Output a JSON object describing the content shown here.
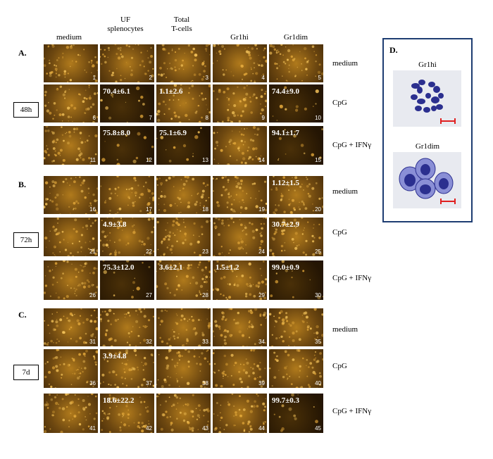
{
  "columns": [
    "medium",
    "UF splenocytes",
    "Total T-cells",
    "Gr1hi",
    "Gr1dim"
  ],
  "row_conditions": [
    "medium",
    "CpG",
    "CpG + IFNγ"
  ],
  "sections": [
    {
      "label": "A.",
      "time": "48h",
      "rows": [
        {
          "cells": [
            {
              "num": "1",
              "val": ""
            },
            {
              "num": "2",
              "val": ""
            },
            {
              "num": "3",
              "val": ""
            },
            {
              "num": "4",
              "val": ""
            },
            {
              "num": "5",
              "val": ""
            }
          ]
        },
        {
          "cells": [
            {
              "num": "6",
              "val": ""
            },
            {
              "num": "7",
              "val": "70.4±6.1"
            },
            {
              "num": "8",
              "val": "1.1±2.6"
            },
            {
              "num": "9",
              "val": ""
            },
            {
              "num": "10",
              "val": "74.4±9.0"
            }
          ]
        },
        {
          "cells": [
            {
              "num": "11",
              "val": ""
            },
            {
              "num": "12",
              "val": "75.8±8.0"
            },
            {
              "num": "13",
              "val": "75.1±6.9"
            },
            {
              "num": "14",
              "val": ""
            },
            {
              "num": "15",
              "val": "94.1±1.7"
            }
          ]
        }
      ]
    },
    {
      "label": "B.",
      "time": "72h",
      "rows": [
        {
          "cells": [
            {
              "num": "16",
              "val": ""
            },
            {
              "num": "17",
              "val": ""
            },
            {
              "num": "18",
              "val": ""
            },
            {
              "num": "19",
              "val": ""
            },
            {
              "num": "20",
              "val": "1.12±1.5"
            }
          ]
        },
        {
          "cells": [
            {
              "num": "21",
              "val": ""
            },
            {
              "num": "22",
              "val": "4.9±3.8"
            },
            {
              "num": "23",
              "val": ""
            },
            {
              "num": "24",
              "val": ""
            },
            {
              "num": "25",
              "val": "30.7±2.9"
            }
          ]
        },
        {
          "cells": [
            {
              "num": "26",
              "val": ""
            },
            {
              "num": "27",
              "val": "75.3±12.0"
            },
            {
              "num": "28",
              "val": "3.6±2.1"
            },
            {
              "num": "29",
              "val": "1.5±1.2"
            },
            {
              "num": "30",
              "val": "99.0±0.9"
            }
          ]
        }
      ]
    },
    {
      "label": "C.",
      "time": "7d",
      "rows": [
        {
          "cells": [
            {
              "num": "31",
              "val": ""
            },
            {
              "num": "32",
              "val": ""
            },
            {
              "num": "33",
              "val": ""
            },
            {
              "num": "34",
              "val": ""
            },
            {
              "num": "35",
              "val": ""
            }
          ]
        },
        {
          "cells": [
            {
              "num": "36",
              "val": ""
            },
            {
              "num": "37",
              "val": "3.9±4.8"
            },
            {
              "num": "38",
              "val": ""
            },
            {
              "num": "39",
              "val": ""
            },
            {
              "num": "40",
              "val": ""
            }
          ]
        },
        {
          "cells": [
            {
              "num": "41",
              "val": ""
            },
            {
              "num": "42",
              "val": "18.6±22.2"
            },
            {
              "num": "43",
              "val": ""
            },
            {
              "num": "44",
              "val": ""
            },
            {
              "num": "45",
              "val": "99.7±0.3"
            }
          ]
        }
      ]
    }
  ],
  "panel_d": {
    "label": "D.",
    "top_title": "Gr1hi",
    "bottom_title": "Gr1dim"
  },
  "colors": {
    "tile_dark": "#3a2406",
    "tile_bright": "#c8871e",
    "cell_stain": "#2b2f8f",
    "scale_bar": "#e02020",
    "panel_border": "#1e3d72"
  }
}
